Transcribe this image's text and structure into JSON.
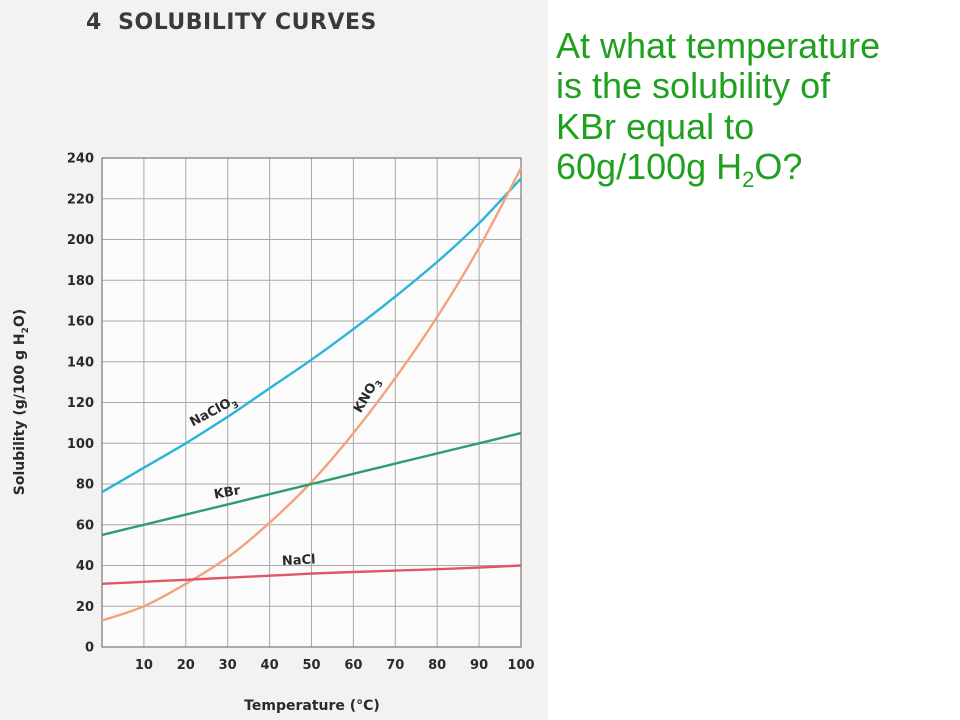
{
  "header": {
    "number": "4",
    "title": "SOLUBILITY CURVES"
  },
  "question": {
    "line1": "At what temperature",
    "line2": "is the solubility of",
    "line3": "KBr equal to",
    "line4_pre": "60g/100g H",
    "line4_sub": "2",
    "line4_post": "O?"
  },
  "chart_data": {
    "type": "line",
    "xlabel": "Temperature (°C)",
    "ylabel_pre": "Solubility (g/100 g H",
    "ylabel_sub": "2",
    "ylabel_post": "O)",
    "xlim": [
      0,
      100
    ],
    "ylim": [
      0,
      240
    ],
    "x_ticks": [
      10,
      20,
      30,
      40,
      50,
      60,
      70,
      80,
      90,
      100
    ],
    "y_ticks": [
      0,
      20,
      40,
      60,
      80,
      100,
      120,
      140,
      160,
      180,
      200,
      220,
      240
    ],
    "grid": true,
    "series": [
      {
        "name": "NaClO",
        "name_sub": "3",
        "color": "#29b4d8",
        "x": [
          0,
          10,
          20,
          30,
          40,
          50,
          60,
          70,
          80,
          90,
          100
        ],
        "y": [
          76,
          88,
          100,
          113,
          127,
          141,
          156,
          172,
          189,
          208,
          230
        ]
      },
      {
        "name": "KNO",
        "name_sub": "3",
        "color": "#f3a37c",
        "x": [
          0,
          10,
          20,
          30,
          40,
          50,
          60,
          70,
          80,
          90,
          100
        ],
        "y": [
          13,
          20,
          31,
          44,
          61,
          81,
          105,
          132,
          162,
          196,
          235
        ]
      },
      {
        "name": "KBr",
        "name_sub": "",
        "color": "#2e9e6e",
        "x": [
          0,
          10,
          20,
          30,
          40,
          50,
          60,
          70,
          80,
          90,
          100
        ],
        "y": [
          55,
          60,
          65,
          70,
          75,
          80,
          85,
          90,
          95,
          100,
          105
        ]
      },
      {
        "name": "NaCl",
        "name_sub": "",
        "color": "#e0556a",
        "x": [
          0,
          10,
          20,
          30,
          40,
          50,
          60,
          70,
          80,
          90,
          100
        ],
        "y": [
          31,
          32,
          33,
          34,
          35,
          36,
          36.8,
          37.5,
          38.2,
          39,
          40
        ]
      }
    ]
  }
}
